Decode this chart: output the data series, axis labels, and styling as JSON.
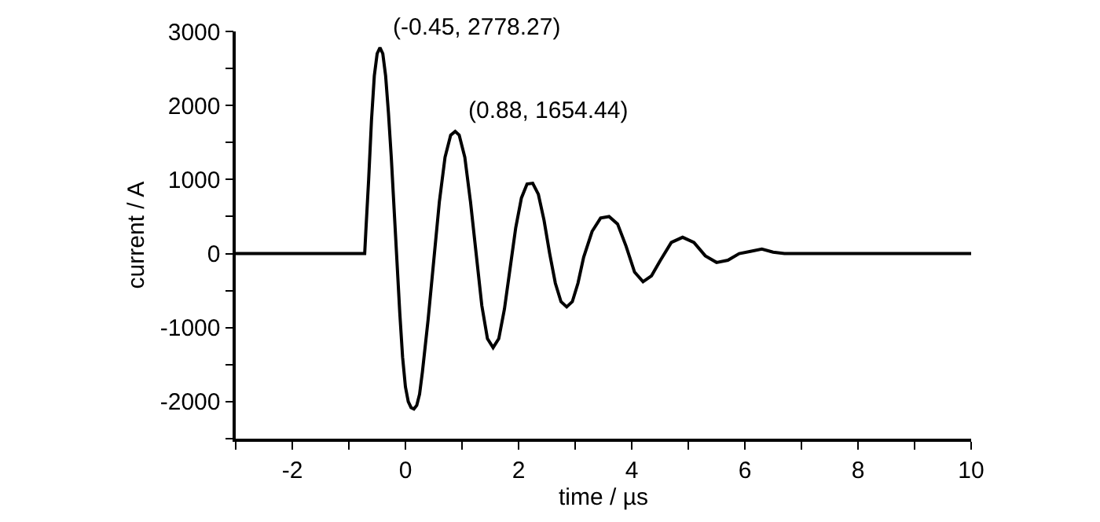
{
  "chart_data": {
    "type": "line",
    "xlabel": "time / µs",
    "ylabel": "current / A",
    "x": [
      -3,
      -2.5,
      -2,
      -1.5,
      -1,
      -0.72,
      -0.7,
      -0.65,
      -0.6,
      -0.55,
      -0.5,
      -0.45,
      -0.4,
      -0.35,
      -0.3,
      -0.25,
      -0.2,
      -0.15,
      -0.1,
      -0.05,
      0,
      0.05,
      0.1,
      0.15,
      0.2,
      0.25,
      0.3,
      0.4,
      0.5,
      0.6,
      0.7,
      0.8,
      0.88,
      0.95,
      1.05,
      1.15,
      1.25,
      1.35,
      1.45,
      1.55,
      1.65,
      1.75,
      1.85,
      1.95,
      2.05,
      2.15,
      2.25,
      2.35,
      2.45,
      2.55,
      2.65,
      2.75,
      2.85,
      2.95,
      3.05,
      3.15,
      3.3,
      3.45,
      3.6,
      3.75,
      3.9,
      4.05,
      4.2,
      4.35,
      4.5,
      4.7,
      4.9,
      5.1,
      5.3,
      5.5,
      5.7,
      5.9,
      6.1,
      6.3,
      6.5,
      6.7,
      8,
      10
    ],
    "series": [
      {
        "color": "#000000",
        "values": [
          0,
          0,
          0,
          0,
          0,
          0,
          300,
          1000,
          1800,
          2400,
          2700,
          2780,
          2700,
          2400,
          1900,
          1300,
          600,
          -100,
          -800,
          -1400,
          -1800,
          -2000,
          -2080,
          -2100,
          -2050,
          -1900,
          -1600,
          -900,
          -100,
          700,
          1300,
          1600,
          1650,
          1600,
          1300,
          700,
          0,
          -700,
          -1150,
          -1270,
          -1150,
          -750,
          -200,
          350,
          750,
          940,
          950,
          800,
          450,
          0,
          -400,
          -650,
          -720,
          -650,
          -400,
          -50,
          300,
          480,
          500,
          400,
          100,
          -250,
          -380,
          -300,
          -100,
          150,
          220,
          150,
          -30,
          -120,
          -90,
          0,
          30,
          60,
          20,
          0,
          0,
          0
        ]
      }
    ],
    "xlim": [
      -3,
      10
    ],
    "ylim": [
      -2500,
      3000
    ],
    "xticks": [
      {
        "value": -3,
        "label": null
      },
      -2,
      {
        "value": -1,
        "label": null
      },
      0,
      {
        "value": 1,
        "label": null
      },
      2,
      {
        "value": 3,
        "label": null
      },
      4,
      {
        "value": 5,
        "label": null
      },
      6,
      {
        "value": 7,
        "label": null
      },
      8,
      {
        "value": 9,
        "label": null
      },
      10
    ],
    "yticks": [
      {
        "value": -2500,
        "label": null
      },
      -2000,
      {
        "value": -1500,
        "label": null
      },
      -1000,
      {
        "value": -500,
        "label": null
      },
      0,
      {
        "value": 500,
        "label": null
      },
      1000,
      {
        "value": 1500,
        "label": null
      },
      2000,
      {
        "value": 2500,
        "label": null
      },
      3000
    ],
    "annotations": [
      {
        "text": "(-0.45, 2778.27)",
        "x": -0.45,
        "y": 2778.27
      },
      {
        "text": "(0.88, 1654.44)",
        "x": 0.88,
        "y": 1654.44
      }
    ],
    "marker": "none",
    "line_style": "solid"
  }
}
